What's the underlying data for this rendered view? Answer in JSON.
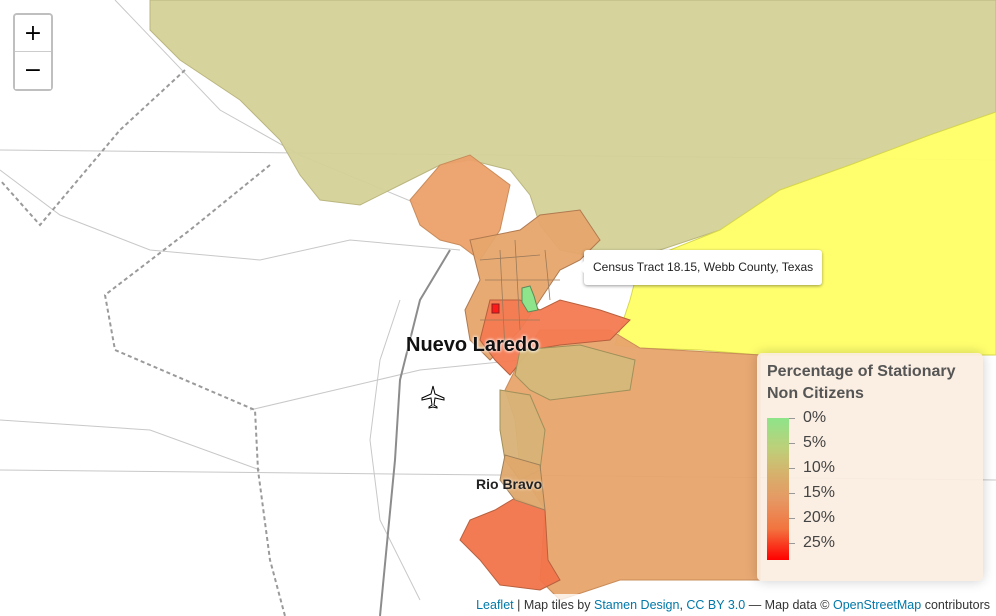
{
  "map": {
    "city_label_1": "Nuevo Laredo",
    "city_label_2": "Rio Bravo",
    "airport_icon": "airplane-icon"
  },
  "zoom": {
    "zoom_in_label": "+",
    "zoom_out_label": "−"
  },
  "tooltip": {
    "text": "Census Tract 18.15, Webb County, Texas"
  },
  "legend": {
    "title": "Percentage of Stationary Non Citizens",
    "labels": [
      "0%",
      "5%",
      "10%",
      "15%",
      "20%",
      "25%"
    ],
    "color_low": "#8ee48a",
    "color_high": "#ff0000"
  },
  "attribution": {
    "leaflet": "Leaflet",
    "sep1": " | Map tiles by ",
    "stamen": "Stamen Design",
    "sep2": ", ",
    "license": "CC BY 3.0",
    "sep3": " — Map data © ",
    "osm": "OpenStreetMap",
    "tail": " contributors"
  },
  "colors": {
    "olive_region": "#d4d197",
    "yellow_region": "#ffff66",
    "orange_region": "#e8a46c",
    "red_region": "#f47a52"
  }
}
